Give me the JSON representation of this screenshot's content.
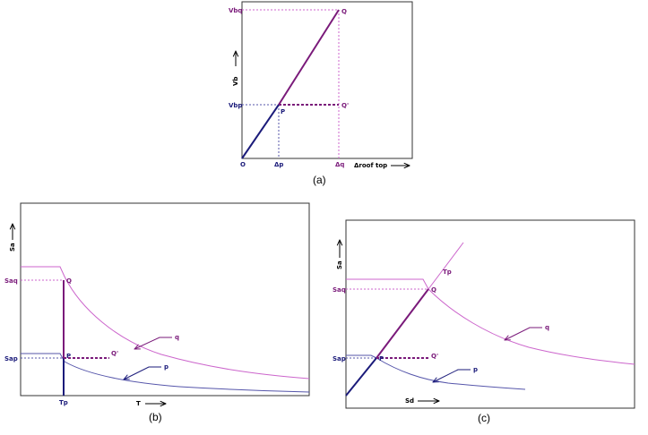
{
  "colors": {
    "navy": "#1b1b7a",
    "purple": "#7a1a7a",
    "violet": "#cc66cc",
    "lavender": "#5555aa",
    "frame": "#333333"
  },
  "panel_a": {
    "caption": "(a)",
    "y_axis_label": "Vb",
    "x_axis_label": "Δroof top",
    "origin_label": "O",
    "tick_vbq": "Vbq",
    "tick_vbp": "Vbp",
    "tick_dp": "Δp",
    "tick_dq": "Δq",
    "point_Q": "Q",
    "point_P": "P",
    "point_Q_prime": "Q'"
  },
  "panel_b": {
    "caption": "(b)",
    "y_axis_label": "Sa",
    "x_axis_label": "T",
    "tick_saq": "Saq",
    "tick_sap": "Sap",
    "tick_tp": "Tp",
    "point_Q": "Q",
    "point_P": "P",
    "point_Q_prime": "Q'",
    "curve_q": "q",
    "curve_p": "p"
  },
  "panel_c": {
    "caption": "(c)",
    "y_axis_label": "Sa",
    "x_axis_label": "Sd",
    "tick_saq": "Saq",
    "tick_sap": "Sap",
    "line_tp": "Tp",
    "point_Q": "Q",
    "point_P": "P",
    "point_Q_prime": "Q'",
    "curve_q": "q",
    "curve_p": "p"
  }
}
